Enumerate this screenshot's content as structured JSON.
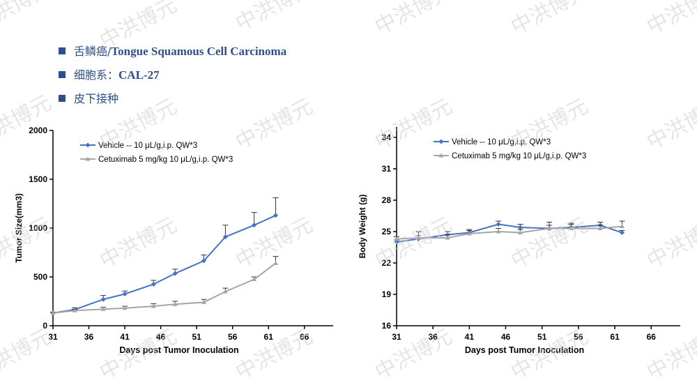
{
  "header": {
    "bullets": [
      {
        "cn": "舌鳞癌/",
        "en": "Tongue Squamous Cell Carcinoma"
      },
      {
        "cn": "细胞系：",
        "en": "CAL-27"
      },
      {
        "cn": "皮下接种",
        "en": ""
      }
    ]
  },
  "watermark": "中洪博元",
  "colors": {
    "vehicle": "#4472c4",
    "cetuximab": "#a5a5a5",
    "bullet": "#2e4f8c"
  },
  "chart_data": [
    {
      "type": "line",
      "ylabel": "Tumor Size(mm3)",
      "xlabel": "Days post Tumor Inoculation",
      "xlim": [
        31,
        70
      ],
      "ylim": [
        0,
        2000
      ],
      "xticks": [
        31,
        36,
        41,
        46,
        51,
        56,
        61,
        66
      ],
      "yticks": [
        0,
        500,
        1000,
        1500,
        2000
      ],
      "legend_position": "top-left",
      "series": [
        {
          "name": "Vehicle -- 10 μL/g,i.p. QW*3",
          "x": [
            31,
            34,
            38,
            41,
            45,
            48,
            52,
            55,
            59,
            62
          ],
          "values": [
            130,
            165,
            270,
            325,
            425,
            535,
            665,
            910,
            1030,
            1130
          ],
          "err": [
            10,
            20,
            40,
            30,
            40,
            45,
            60,
            120,
            130,
            180
          ]
        },
        {
          "name": "Cetuximab 5 mg/kg 10 μL/g,i.p. QW*3",
          "x": [
            31,
            34,
            38,
            41,
            45,
            48,
            52,
            55,
            59,
            62
          ],
          "values": [
            130,
            155,
            170,
            180,
            200,
            220,
            240,
            350,
            475,
            640
          ],
          "err": [
            8,
            12,
            20,
            20,
            25,
            30,
            30,
            35,
            25,
            70
          ]
        }
      ]
    },
    {
      "type": "line",
      "ylabel": "Body Weight (g)",
      "xlabel": "Days post Tumor Inoculation",
      "xlim": [
        31,
        70
      ],
      "ylim": [
        16,
        35
      ],
      "xticks": [
        31,
        36,
        41,
        46,
        51,
        56,
        61,
        66
      ],
      "yticks": [
        16,
        19,
        22,
        25,
        28,
        31,
        34
      ],
      "legend_position": "top-left",
      "series": [
        {
          "name": "Vehicle -- 10 μL/g,i.p. QW*3",
          "x": [
            31,
            34,
            38,
            41,
            45,
            48,
            52,
            55,
            59,
            62
          ],
          "values": [
            24.0,
            24.3,
            24.7,
            24.9,
            25.7,
            25.4,
            25.3,
            25.4,
            25.6,
            24.9
          ],
          "err": [
            0.2,
            0.3,
            0.3,
            0.3,
            0.3,
            0.3,
            0.3,
            0.3,
            0.3,
            0.2
          ]
        },
        {
          "name": "Cetuximab 5 mg/kg 10 μL/g,i.p. QW*3",
          "x": [
            31,
            34,
            38,
            41,
            45,
            48,
            52,
            55,
            59,
            62
          ],
          "values": [
            24.3,
            24.4,
            24.4,
            24.8,
            25.0,
            24.9,
            25.3,
            25.3,
            25.3,
            25.5
          ],
          "err": [
            0.2,
            0.6,
            0.3,
            0.3,
            0.3,
            0.3,
            0.6,
            0.5,
            0.3,
            0.5
          ]
        }
      ]
    }
  ]
}
